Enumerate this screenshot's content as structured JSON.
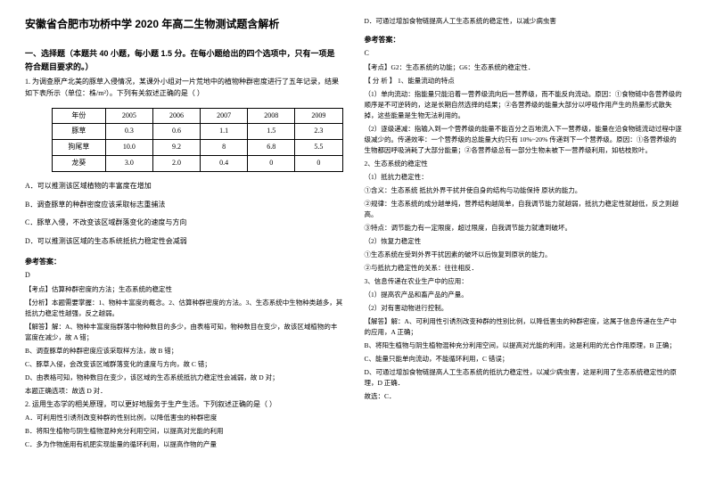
{
  "title": "安徽省合肥市功桥中学 2020 年高二生物测试题含解析",
  "section1": "一、选择题（本题共 40 小题，每小题 1.5 分。在每小题给出的四个选项中，只有一项是符合题目要求的。）",
  "q1_stem1": "1. 为调查原产北美的豚草入侵情况，某课外小组对一片荒地中的植物种群密度进行了五年记录，结果如下表所示（单位：株/m²）。下列有关叙述正确的是（    ）",
  "table": {
    "header": [
      "年份",
      "2005",
      "2006",
      "2007",
      "2008",
      "2009"
    ],
    "rows": [
      [
        "豚草",
        "0.3",
        "0.6",
        "1.1",
        "1.5",
        "2.3"
      ],
      [
        "狗尾草",
        "10.0",
        "9.2",
        "8",
        "6.8",
        "5.5"
      ],
      [
        "龙葵",
        "3.0",
        "2.0",
        "0.4",
        "0",
        "0"
      ]
    ]
  },
  "q1_opts": {
    "A": "A．可以推测该区域植物的丰富度在增加",
    "B": "B．调查豚草的种群密度应该采取标志重捕法",
    "C": "C．豚草入侵，不改变该区域群落变化的速度与方向",
    "D": "D．可以推测该区域的生态系统抵抗力稳定性会减弱"
  },
  "ans_label": "参考答案：",
  "q1_ans": "D",
  "q1_kd": "【考点】估算种群密度的方法；生态系统的稳定性",
  "q1_fx": "【分析】本题需要掌握：1、物种丰富度的概念。2、估算种群密度的方法。3、生态系统中生物种类越多，其抵抗力稳定性越强，反之越弱。",
  "q1_jd_label": "【解答】解：",
  "q1_jdA": "A、物种丰富度指群落中物种数目的多少，由表格可知，物种数目在变少，故该区域植物的丰富度在减少，故 A 错；",
  "q1_jdB": "B、调查豚草的种群密度应该采取样方法，故 B 错；",
  "q1_jdC": "C、豚草入侵，会改变该区域群落变化的速度与方向，故 C 错；",
  "q1_jdD": "D、由表格可知，物种数目在变少，该区域的生态系统抵抗力稳定性会减弱，故 D 对；",
  "q1_sel": "本题正确选项：故选 D 对．",
  "q2_stem": "2. 运用生态学的相关原理，可以更好地服务于生产生活。下列叙述正确的是（    ）",
  "q2_opts": {
    "A": "A．可利用性引诱剂改变种群的性别比例，以降低害虫的种群密度",
    "B": "B．将阳生植物与阴生植物混种充分利用空间，以提高对光能的利用",
    "C": "C．多为作物施用有机肥实现能量的循环利用，以提高作物的产量",
    "D": "D．可通过增加食物链提高人工生态系统的稳定性，以减少病虫害"
  },
  "q2_ans": "C",
  "q2_kd": "【考点】G2：生态系统的功能；G6：生态系统的稳定性．",
  "q2_fx_label": "【 分 析 】",
  "q2_fx_t1": "1、能量流动的特点",
  "q2_p1": "（1）单向流动：指能量只能沿着一营养级流向后一营养级，而不能反向流动。原因：①食物链中各营养级的顺序是不可逆转的，这是长期自然选择的结果；②各营养级的能量大部分以呼吸作用产生的热量形式散失掉，这些能量是生物无法利用的。",
  "q2_p2": "（2）逐级递减：指输入到一个营养级的能量不能百分之百地流入下一营养级，能量在沿食物链流动过程中逐级减少的。传递效率：一个营养级的总能量大约只有 10%~20% 传递到下一个营养级。原因：①各营养级的生物都因呼吸消耗了大部分能量；②各营养级总有一部分生物未被下一营养级利用，如枯枝败叶。",
  "q2_t2": "2、生态系统的稳定性",
  "q2_p3": "（1）抵抗力稳定性：",
  "q2_p3a": "①含义：生态系统 抵抗外界干扰并使自身的结构与功能保持 原状的能力。",
  "q2_p3b": "②规律：生态系统的成分越单纯，营养结构越简单，自我调节能力就越弱，抵抗力稳定性就越低，反之则越高。",
  "q2_p3c": "③特点：调节能力有一定限度，超过限度，自我调节能力就遭到破坏。",
  "q2_p4": "（2）恢复力稳定性",
  "q2_p4a": "①生态系统在受到外界干扰因素的破坏以后恢复到原状的能力。",
  "q2_p4b": "②与抵抗力稳定性的关系：往往相反．",
  "q2_t3": "3、信息传递在农业生产中的应用：",
  "q2_p5": "（1）提高农产品和畜产品的产量。",
  "q2_p6": "（2）对有害动物进行控制。",
  "q2_jd_label": "【解答】解：",
  "q2_jdA": "A、可利用性引诱剂改变种群的性别比例，以降低害虫的种群密度，这属于信息传递在生产中的应用，A 正确；",
  "q2_jdB": "B、将阳生植物与阴生植物混种充分利用空间，以提高对光能的利用，这是利用的光合作用原理，B 正确；",
  "q2_jdC": "C、能量只能单向流动，不能循环利用，C 错误；",
  "q2_jdD": "D、可通过增加食物链提高人工生态系统的抵抗力稳定性，以减少病虫害，这是利用了生态系统稳定性的原理，D 正确．",
  "q2_sel": "故选：C．"
}
